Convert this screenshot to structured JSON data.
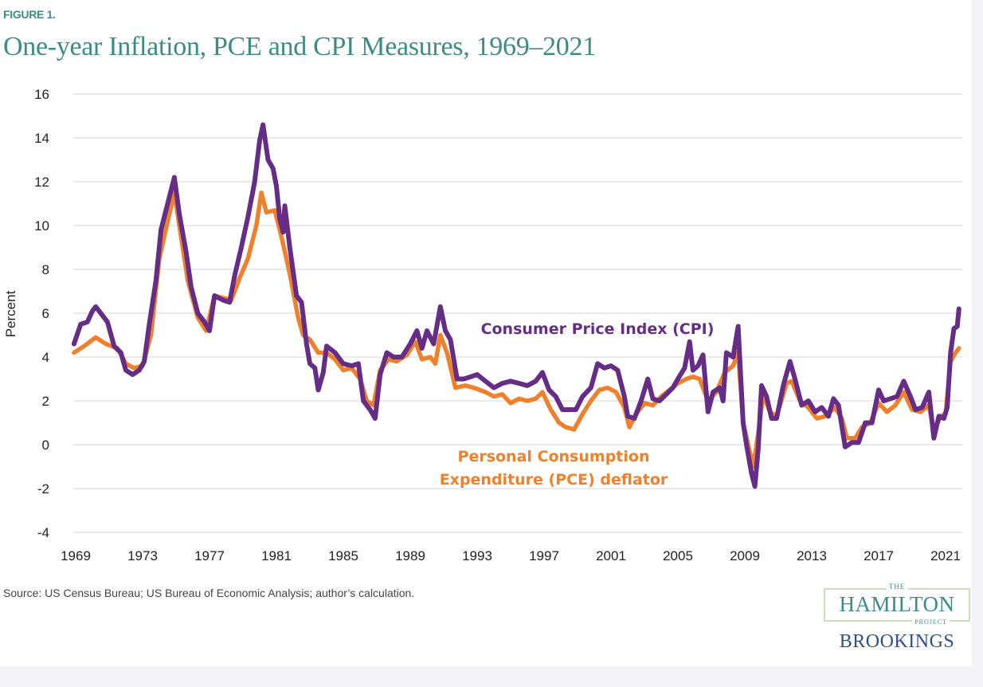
{
  "figure_label": "FIGURE 1.",
  "source": "Source: US Census Bureau; US Bureau of Economic Analysis; author’s calculation.",
  "logo": {
    "the": "THE",
    "hamilton": "HAMILTON",
    "project": "PROJECT",
    "brookings": "BROOKINGS"
  },
  "colors": {
    "title": "#3d8c83",
    "cpi": "#662d86",
    "pce": "#f0812c",
    "grid": "#e3e3e3"
  },
  "chart_data": {
    "type": "line",
    "title": "One-year Inflation, PCE and CPI Measures, 1969–2021",
    "xlabel": "",
    "ylabel": "Percent",
    "xlim": [
      1969,
      2021
    ],
    "ylim": [
      -4,
      16
    ],
    "xticks": [
      "1969",
      "1973",
      "1977",
      "1981",
      "1985",
      "1989",
      "1993",
      "1997",
      "2001",
      "2005",
      "2009",
      "2013",
      "2017",
      "2021"
    ],
    "yticks": [
      "16",
      "14",
      "12",
      "10",
      "8",
      "6",
      "4",
      "2",
      "0",
      "-2",
      "-4"
    ],
    "grid": true,
    "series": [
      {
        "name": "Consumer Price Index (CPI)",
        "label_lines": [
          "Consumer Price Index (CPI)"
        ],
        "color": "#662d86",
        "points": [
          [
            1968.9,
            4.6
          ],
          [
            1969.3,
            5.5
          ],
          [
            1969.7,
            5.6
          ],
          [
            1970.0,
            6.1
          ],
          [
            1970.2,
            6.3
          ],
          [
            1970.5,
            6.0
          ],
          [
            1970.9,
            5.6
          ],
          [
            1971.3,
            4.5
          ],
          [
            1971.7,
            4.2
          ],
          [
            1972.0,
            3.4
          ],
          [
            1972.4,
            3.2
          ],
          [
            1972.8,
            3.4
          ],
          [
            1973.1,
            3.8
          ],
          [
            1973.4,
            5.5
          ],
          [
            1973.8,
            7.5
          ],
          [
            1974.1,
            9.8
          ],
          [
            1974.5,
            11.0
          ],
          [
            1974.9,
            12.2
          ],
          [
            1975.2,
            10.5
          ],
          [
            1975.6,
            8.8
          ],
          [
            1975.9,
            7.2
          ],
          [
            1976.3,
            6.0
          ],
          [
            1976.7,
            5.6
          ],
          [
            1977.0,
            5.2
          ],
          [
            1977.3,
            6.8
          ],
          [
            1977.8,
            6.6
          ],
          [
            1978.2,
            6.5
          ],
          [
            1978.5,
            7.7
          ],
          [
            1978.9,
            9.0
          ],
          [
            1979.3,
            10.4
          ],
          [
            1979.7,
            12.0
          ],
          [
            1980.0,
            13.9
          ],
          [
            1980.2,
            14.6
          ],
          [
            1980.5,
            13.0
          ],
          [
            1980.8,
            12.6
          ],
          [
            1981.0,
            11.8
          ],
          [
            1981.2,
            10.3
          ],
          [
            1981.4,
            9.7
          ],
          [
            1981.5,
            10.9
          ],
          [
            1981.8,
            9.0
          ],
          [
            1982.2,
            6.8
          ],
          [
            1982.5,
            6.5
          ],
          [
            1982.8,
            4.6
          ],
          [
            1983.0,
            3.7
          ],
          [
            1983.3,
            3.5
          ],
          [
            1983.5,
            2.5
          ],
          [
            1983.8,
            3.3
          ],
          [
            1984.0,
            4.5
          ],
          [
            1984.5,
            4.2
          ],
          [
            1985.0,
            3.7
          ],
          [
            1985.5,
            3.6
          ],
          [
            1985.9,
            3.7
          ],
          [
            1986.2,
            2.0
          ],
          [
            1986.6,
            1.6
          ],
          [
            1986.9,
            1.2
          ],
          [
            1987.2,
            3.2
          ],
          [
            1987.6,
            4.2
          ],
          [
            1988.0,
            4.0
          ],
          [
            1988.5,
            4.0
          ],
          [
            1989.0,
            4.6
          ],
          [
            1989.4,
            5.2
          ],
          [
            1989.7,
            4.4
          ],
          [
            1990.0,
            5.2
          ],
          [
            1990.4,
            4.6
          ],
          [
            1990.8,
            6.3
          ],
          [
            1991.1,
            5.2
          ],
          [
            1991.4,
            4.8
          ],
          [
            1991.8,
            3.0
          ],
          [
            1992.2,
            3.0
          ],
          [
            1992.6,
            3.1
          ],
          [
            1993.0,
            3.2
          ],
          [
            1993.5,
            2.9
          ],
          [
            1994.0,
            2.6
          ],
          [
            1994.5,
            2.8
          ],
          [
            1995.0,
            2.9
          ],
          [
            1995.5,
            2.8
          ],
          [
            1996.0,
            2.7
          ],
          [
            1996.5,
            2.9
          ],
          [
            1996.9,
            3.3
          ],
          [
            1997.3,
            2.5
          ],
          [
            1997.7,
            2.2
          ],
          [
            1998.1,
            1.6
          ],
          [
            1998.5,
            1.6
          ],
          [
            1998.9,
            1.6
          ],
          [
            1999.3,
            2.2
          ],
          [
            1999.8,
            2.6
          ],
          [
            2000.2,
            3.7
          ],
          [
            2000.6,
            3.5
          ],
          [
            2001.0,
            3.6
          ],
          [
            2001.4,
            3.4
          ],
          [
            2001.8,
            2.2
          ],
          [
            2002.0,
            1.3
          ],
          [
            2002.4,
            1.2
          ],
          [
            2002.8,
            2.0
          ],
          [
            2003.2,
            3.0
          ],
          [
            2003.5,
            2.1
          ],
          [
            2003.9,
            2.0
          ],
          [
            2004.3,
            2.3
          ],
          [
            2004.7,
            2.6
          ],
          [
            2005.0,
            3.0
          ],
          [
            2005.4,
            3.5
          ],
          [
            2005.7,
            4.7
          ],
          [
            2005.9,
            3.4
          ],
          [
            2006.2,
            3.6
          ],
          [
            2006.5,
            4.1
          ],
          [
            2006.8,
            1.5
          ],
          [
            2007.1,
            2.4
          ],
          [
            2007.5,
            2.6
          ],
          [
            2007.7,
            2.0
          ],
          [
            2007.9,
            4.2
          ],
          [
            2008.3,
            4.0
          ],
          [
            2008.6,
            5.4
          ],
          [
            2008.9,
            1.0
          ],
          [
            2009.1,
            0.0
          ],
          [
            2009.4,
            -1.3
          ],
          [
            2009.6,
            -1.9
          ],
          [
            2009.8,
            -0.2
          ],
          [
            2010.0,
            2.7
          ],
          [
            2010.3,
            2.2
          ],
          [
            2010.6,
            1.2
          ],
          [
            2010.9,
            1.2
          ],
          [
            2011.3,
            2.7
          ],
          [
            2011.7,
            3.8
          ],
          [
            2012.0,
            3.0
          ],
          [
            2012.4,
            1.8
          ],
          [
            2012.8,
            2.0
          ],
          [
            2013.2,
            1.5
          ],
          [
            2013.6,
            1.7
          ],
          [
            2014.0,
            1.3
          ],
          [
            2014.3,
            2.1
          ],
          [
            2014.6,
            1.8
          ],
          [
            2015.0,
            -0.1
          ],
          [
            2015.4,
            0.1
          ],
          [
            2015.8,
            0.1
          ],
          [
            2016.2,
            1.0
          ],
          [
            2016.6,
            1.0
          ],
          [
            2017.0,
            2.5
          ],
          [
            2017.3,
            2.0
          ],
          [
            2017.7,
            2.1
          ],
          [
            2018.1,
            2.2
          ],
          [
            2018.5,
            2.9
          ],
          [
            2018.9,
            2.2
          ],
          [
            2019.2,
            1.6
          ],
          [
            2019.6,
            1.7
          ],
          [
            2020.0,
            2.4
          ],
          [
            2020.3,
            0.3
          ],
          [
            2020.6,
            1.3
          ],
          [
            2020.9,
            1.2
          ],
          [
            2021.1,
            1.7
          ],
          [
            2021.3,
            4.2
          ],
          [
            2021.5,
            5.3
          ],
          [
            2021.7,
            5.4
          ],
          [
            2021.8,
            6.2
          ]
        ]
      },
      {
        "name": "Personal Consumption Expenditure (PCE) deflator",
        "label_lines": [
          "Personal Consumption",
          "Expenditure (PCE) deflator"
        ],
        "color": "#f0812c",
        "points": [
          [
            1968.9,
            4.2
          ],
          [
            1969.5,
            4.5
          ],
          [
            1970.2,
            4.9
          ],
          [
            1970.8,
            4.6
          ],
          [
            1971.5,
            4.4
          ],
          [
            1972.0,
            3.7
          ],
          [
            1972.5,
            3.5
          ],
          [
            1973.0,
            3.6
          ],
          [
            1973.5,
            5.0
          ],
          [
            1974.0,
            8.5
          ],
          [
            1974.5,
            10.2
          ],
          [
            1974.9,
            11.5
          ],
          [
            1975.3,
            9.5
          ],
          [
            1975.7,
            7.5
          ],
          [
            1976.3,
            5.8
          ],
          [
            1976.8,
            5.2
          ],
          [
            1977.3,
            6.8
          ],
          [
            1977.8,
            6.7
          ],
          [
            1978.3,
            6.6
          ],
          [
            1978.8,
            7.6
          ],
          [
            1979.3,
            8.5
          ],
          [
            1979.8,
            10.0
          ],
          [
            1980.1,
            11.5
          ],
          [
            1980.4,
            10.6
          ],
          [
            1980.9,
            10.7
          ],
          [
            1981.3,
            9.5
          ],
          [
            1981.8,
            7.8
          ],
          [
            1982.3,
            5.8
          ],
          [
            1982.6,
            5.0
          ],
          [
            1983.0,
            4.8
          ],
          [
            1983.5,
            4.2
          ],
          [
            1984.0,
            4.2
          ],
          [
            1984.5,
            3.9
          ],
          [
            1985.0,
            3.4
          ],
          [
            1985.5,
            3.5
          ],
          [
            1986.0,
            3.0
          ],
          [
            1986.4,
            2.0
          ],
          [
            1986.8,
            1.8
          ],
          [
            1987.2,
            3.4
          ],
          [
            1987.7,
            3.9
          ],
          [
            1988.2,
            3.8
          ],
          [
            1988.8,
            4.1
          ],
          [
            1989.3,
            4.7
          ],
          [
            1989.7,
            3.9
          ],
          [
            1990.2,
            4.0
          ],
          [
            1990.5,
            3.7
          ],
          [
            1990.8,
            5.0
          ],
          [
            1991.2,
            4.2
          ],
          [
            1991.7,
            2.6
          ],
          [
            1992.3,
            2.7
          ],
          [
            1992.8,
            2.6
          ],
          [
            1993.5,
            2.4
          ],
          [
            1994.0,
            2.2
          ],
          [
            1994.5,
            2.3
          ],
          [
            1995.0,
            1.9
          ],
          [
            1995.5,
            2.1
          ],
          [
            1996.0,
            2.0
          ],
          [
            1996.5,
            2.1
          ],
          [
            1996.9,
            2.4
          ],
          [
            1997.4,
            1.6
          ],
          [
            1997.9,
            1.0
          ],
          [
            1998.3,
            0.8
          ],
          [
            1998.8,
            0.7
          ],
          [
            1999.3,
            1.4
          ],
          [
            1999.8,
            2.0
          ],
          [
            2000.3,
            2.5
          ],
          [
            2000.8,
            2.6
          ],
          [
            2001.3,
            2.4
          ],
          [
            2001.8,
            1.7
          ],
          [
            2002.1,
            0.8
          ],
          [
            2002.5,
            1.4
          ],
          [
            2003.0,
            1.9
          ],
          [
            2003.5,
            1.8
          ],
          [
            2004.0,
            2.2
          ],
          [
            2004.5,
            2.5
          ],
          [
            2005.0,
            2.8
          ],
          [
            2005.5,
            3.0
          ],
          [
            2005.9,
            3.1
          ],
          [
            2006.3,
            3.0
          ],
          [
            2006.8,
            2.0
          ],
          [
            2007.3,
            2.4
          ],
          [
            2007.8,
            3.3
          ],
          [
            2008.3,
            3.6
          ],
          [
            2008.6,
            4.2
          ],
          [
            2008.9,
            1.0
          ],
          [
            2009.2,
            0.0
          ],
          [
            2009.5,
            -1.0
          ],
          [
            2009.8,
            0.5
          ],
          [
            2010.1,
            2.3
          ],
          [
            2010.5,
            1.5
          ],
          [
            2010.9,
            1.3
          ],
          [
            2011.5,
            2.8
          ],
          [
            2011.8,
            2.9
          ],
          [
            2012.3,
            2.0
          ],
          [
            2012.8,
            1.7
          ],
          [
            2013.3,
            1.2
          ],
          [
            2013.8,
            1.3
          ],
          [
            2014.4,
            1.7
          ],
          [
            2014.8,
            1.2
          ],
          [
            2015.1,
            0.3
          ],
          [
            2015.6,
            0.3
          ],
          [
            2016.0,
            0.8
          ],
          [
            2016.5,
            1.0
          ],
          [
            2017.0,
            1.9
          ],
          [
            2017.5,
            1.5
          ],
          [
            2018.0,
            1.8
          ],
          [
            2018.5,
            2.4
          ],
          [
            2019.0,
            1.6
          ],
          [
            2019.5,
            1.5
          ],
          [
            2020.0,
            1.8
          ],
          [
            2020.3,
            0.6
          ],
          [
            2020.7,
            1.3
          ],
          [
            2021.0,
            1.4
          ],
          [
            2021.3,
            3.8
          ],
          [
            2021.6,
            4.2
          ],
          [
            2021.8,
            4.4
          ]
        ]
      }
    ]
  }
}
